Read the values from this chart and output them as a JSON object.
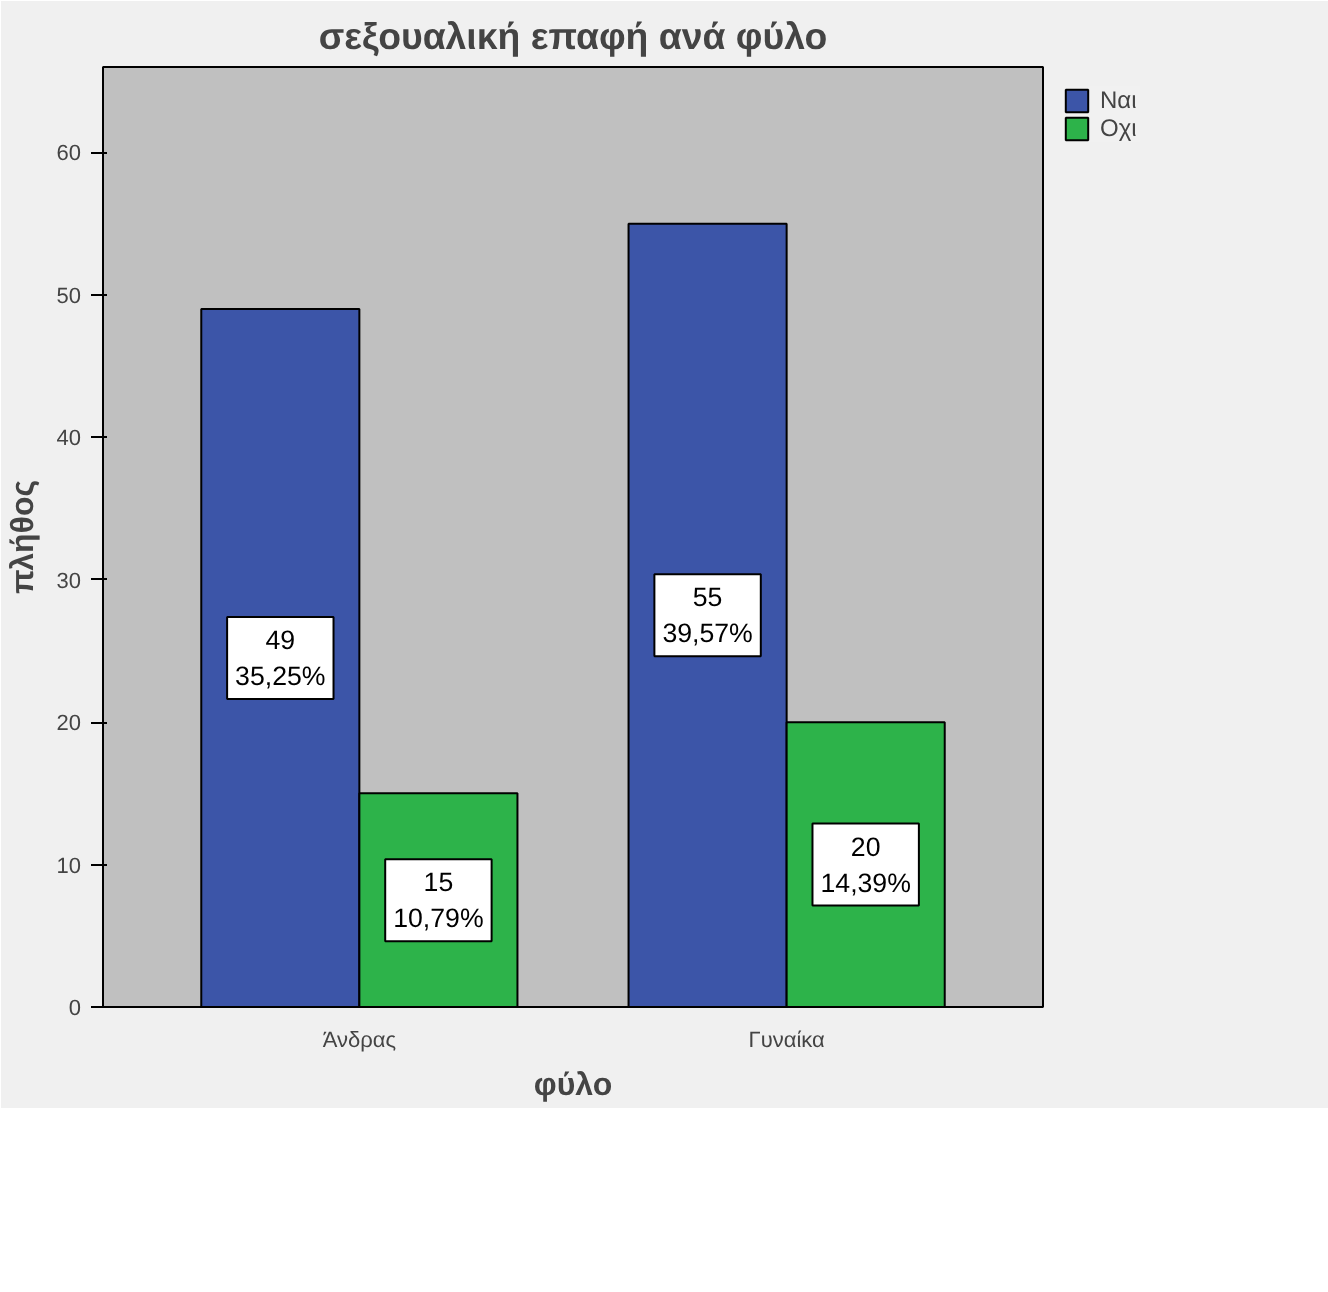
{
  "chart_data": {
    "type": "bar",
    "title": "σεξουαλική επαφή ανά φύλο",
    "xlabel": "φύλο",
    "ylabel": "πλήθος",
    "categories": [
      "Άνδρας",
      "Γυναίκα"
    ],
    "series": [
      {
        "name": "Ναι",
        "color": "#3c55a8",
        "values": [
          49,
          55
        ],
        "value_labels": [
          "49\n35,25%",
          "55\n39,57%"
        ]
      },
      {
        "name": "Οχι",
        "color": "#2db34a",
        "values": [
          15,
          20
        ],
        "value_labels": [
          "15\n10,79%",
          "20\n14,39%"
        ]
      }
    ],
    "ylim": [
      0,
      66
    ],
    "yticks": [
      0,
      10,
      20,
      30,
      40,
      50,
      60
    ],
    "grid": false,
    "legend": "top right"
  }
}
